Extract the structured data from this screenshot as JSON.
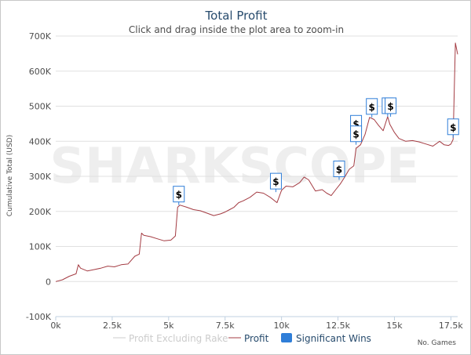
{
  "chart_data": {
    "type": "line",
    "title": "Total Profit",
    "subtitle": "Click and drag inside the plot area to zoom-in",
    "xlabel": "No. Games",
    "ylabel": "Cumulative Total (USD)",
    "xlim": [
      0,
      17800
    ],
    "ylim": [
      -100000,
      700000
    ],
    "x_ticks": [
      0,
      2500,
      5000,
      7500,
      10000,
      12500,
      15000,
      17500
    ],
    "x_tick_labels": [
      "0k",
      "2.5k",
      "5k",
      "7.5k",
      "10k",
      "12.5k",
      "15k",
      "17.5k"
    ],
    "y_ticks": [
      -100000,
      0,
      100000,
      200000,
      300000,
      400000,
      500000,
      600000,
      700000
    ],
    "y_tick_labels": [
      "-100K",
      "0",
      "100K",
      "200K",
      "300K",
      "400K",
      "500K",
      "600K",
      "700K"
    ],
    "grid": "horizontal",
    "legend_position": "bottom",
    "watermark": "SHARKSCOPE",
    "series": [
      {
        "name": "Profit",
        "color": "#a43c43",
        "x": [
          0,
          300,
          600,
          900,
          1000,
          1100,
          1400,
          1700,
          2000,
          2300,
          2600,
          2900,
          3200,
          3500,
          3700,
          3800,
          3900,
          4200,
          4500,
          4800,
          5100,
          5300,
          5400,
          5500,
          5800,
          6100,
          6400,
          6700,
          7000,
          7300,
          7500,
          7700,
          7900,
          8100,
          8300,
          8600,
          8900,
          9200,
          9500,
          9800,
          10000,
          10200,
          10500,
          10800,
          11000,
          11200,
          11500,
          11800,
          12000,
          12200,
          12400,
          12600,
          12800,
          13000,
          13200,
          13300,
          13500,
          13700,
          13900,
          14100,
          14300,
          14500,
          14700,
          14800,
          15000,
          15200,
          15500,
          15800,
          16100,
          16400,
          16700,
          17000,
          17200,
          17400,
          17500,
          17600,
          17700,
          17800
        ],
        "y": [
          0,
          5000,
          15000,
          22000,
          48000,
          38000,
          30000,
          34000,
          38000,
          44000,
          42000,
          48000,
          50000,
          72000,
          78000,
          138000,
          132000,
          128000,
          122000,
          116000,
          118000,
          130000,
          212000,
          218000,
          212000,
          205000,
          202000,
          195000,
          188000,
          193000,
          198000,
          205000,
          212000,
          225000,
          230000,
          240000,
          255000,
          252000,
          240000,
          225000,
          260000,
          272000,
          270000,
          282000,
          298000,
          290000,
          258000,
          262000,
          252000,
          245000,
          262000,
          278000,
          298000,
          320000,
          330000,
          380000,
          390000,
          420000,
          468000,
          462000,
          445000,
          430000,
          470000,
          448000,
          425000,
          408000,
          400000,
          402000,
          398000,
          392000,
          386000,
          400000,
          390000,
          388000,
          392000,
          405000,
          680000,
          648000
        ]
      },
      {
        "name": "Profit Excluding Rake",
        "color": "#cccccc",
        "x": [],
        "y": []
      }
    ],
    "significant_wins": [
      {
        "x": 5450,
        "y": 218000,
        "label": "$"
      },
      {
        "x": 9750,
        "y": 255000,
        "label": "$"
      },
      {
        "x": 12550,
        "y": 290000,
        "label": "$"
      },
      {
        "x": 13300,
        "y": 420000,
        "label": "$"
      },
      {
        "x": 13300,
        "y": 390000,
        "label": "$"
      },
      {
        "x": 14000,
        "y": 468000,
        "label": "$"
      },
      {
        "x": 14700,
        "y": 470000,
        "label": "$"
      },
      {
        "x": 14830,
        "y": 470000,
        "label": "$"
      },
      {
        "x": 17600,
        "y": 410000,
        "label": "$"
      }
    ],
    "legend": {
      "items": [
        {
          "name": "Profit Excluding Rake",
          "color": "#cccccc",
          "text_color": "#cccccc",
          "symbol": "line"
        },
        {
          "name": "Profit",
          "color": "#a43c43",
          "text_color": "#274b6d",
          "symbol": "line"
        },
        {
          "name": "Significant Wins",
          "color": "#2f7ed8",
          "text_color": "#274b6d",
          "symbol": "square"
        }
      ]
    }
  }
}
